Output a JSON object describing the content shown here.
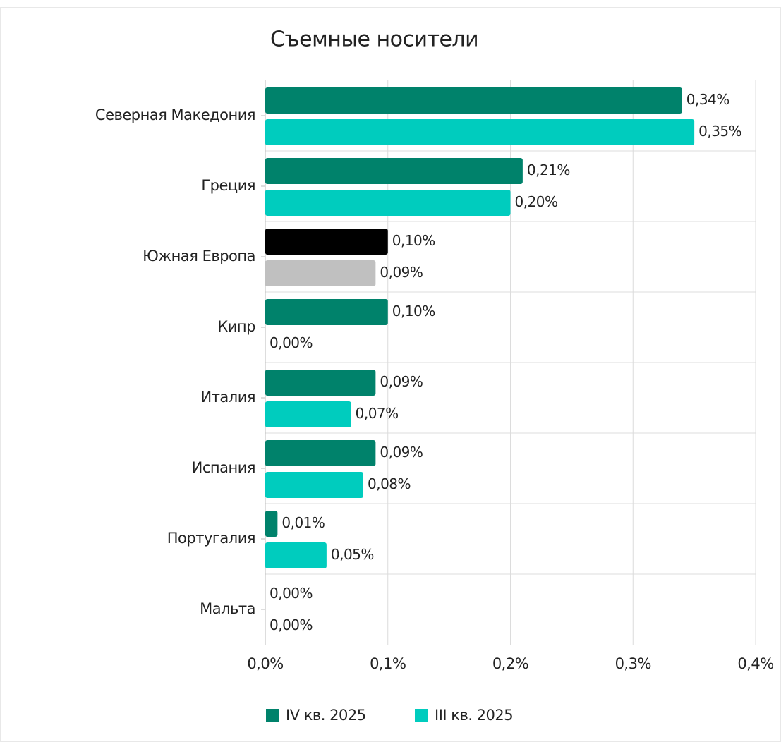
{
  "chart_data": {
    "type": "barh",
    "title": "Съемные носители",
    "categories": [
      "Северная Македония",
      "Греция",
      "Южная Европа",
      "Кипр",
      "Италия",
      "Испания",
      "Португалия",
      "Мальта"
    ],
    "series": [
      {
        "name": "IV кв. 2025",
        "color": "#00826b",
        "colors": [
          "#00826b",
          "#00826b",
          "#000000",
          "#00826b",
          "#00826b",
          "#00826b",
          "#00826b",
          "#00826b"
        ],
        "values": [
          0.34,
          0.21,
          0.1,
          0.1,
          0.09,
          0.09,
          0.01,
          0.0
        ],
        "value_labels": [
          "0,34%",
          "0,21%",
          "0,10%",
          "0,10%",
          "0,09%",
          "0,09%",
          "0,01%",
          "0,00%"
        ]
      },
      {
        "name": "III кв. 2025",
        "color": "#00ccbe",
        "colors": [
          "#00ccbe",
          "#00ccbe",
          "#c0c0c0",
          "#00ccbe",
          "#00ccbe",
          "#00ccbe",
          "#00ccbe",
          "#00ccbe"
        ],
        "values": [
          0.35,
          0.2,
          0.09,
          0.0,
          0.07,
          0.08,
          0.05,
          0.0
        ],
        "value_labels": [
          "0,35%",
          "0,20%",
          "0,09%",
          "0,00%",
          "0,07%",
          "0,08%",
          "0,05%",
          "0,00%"
        ]
      }
    ],
    "xlim": [
      0,
      0.4
    ],
    "xticks": [
      {
        "value": 0,
        "label": "0,0%"
      },
      {
        "value": 0.1,
        "label": "0,1%"
      },
      {
        "value": 0.2,
        "label": "0,2%"
      },
      {
        "value": 0.3,
        "label": "0,3%"
      },
      {
        "value": 0.4,
        "label": "0,4%"
      }
    ],
    "grid": true,
    "legend": "bottom"
  }
}
